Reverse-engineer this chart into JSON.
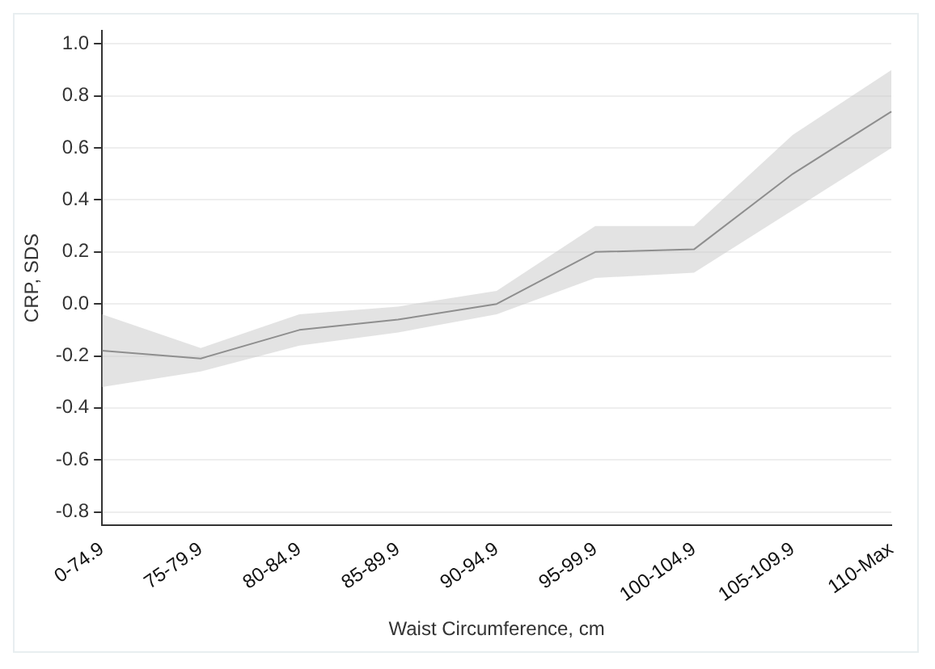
{
  "chart_data": {
    "type": "line",
    "xlabel": "Waist Circumference, cm",
    "ylabel": "CRP, SDS",
    "categories": [
      "0-74.9",
      "75-79.9",
      "80-84.9",
      "85-89.9",
      "90-94.9",
      "95-99.9",
      "100-104.9",
      "105-109.9",
      "110-Max"
    ],
    "series": [
      {
        "color": "#555555",
        "values": [
          -0.18,
          -0.21,
          -0.1,
          -0.06,
          0.0,
          0.2,
          0.21,
          0.5,
          0.74
        ],
        "lower": [
          -0.32,
          -0.26,
          -0.16,
          -0.11,
          -0.04,
          0.1,
          0.12,
          0.36,
          0.6
        ],
        "upper": [
          -0.04,
          -0.17,
          -0.04,
          -0.01,
          0.05,
          0.3,
          0.3,
          0.65,
          0.9
        ]
      }
    ],
    "ylim": [
      -0.85,
      1.05
    ],
    "yticks": [
      {
        "value": -0.8,
        "label": "-0.8"
      },
      {
        "value": -0.6,
        "label": "-0.6"
      },
      {
        "value": -0.4,
        "label": "-0.4"
      },
      {
        "value": -0.2,
        "label": "-0.2"
      },
      {
        "value": 0,
        "label": "0.0"
      },
      {
        "value": 0.2,
        "label": "0.2"
      },
      {
        "value": 0.4,
        "label": "0.4"
      },
      {
        "value": 0.6,
        "label": "0.6"
      },
      {
        "value": 0.8,
        "label": "0.8"
      },
      {
        "value": 1.0,
        "label": "1.0"
      }
    ],
    "grid": "y",
    "legend": false,
    "marker": "none",
    "line_style": "solid"
  }
}
